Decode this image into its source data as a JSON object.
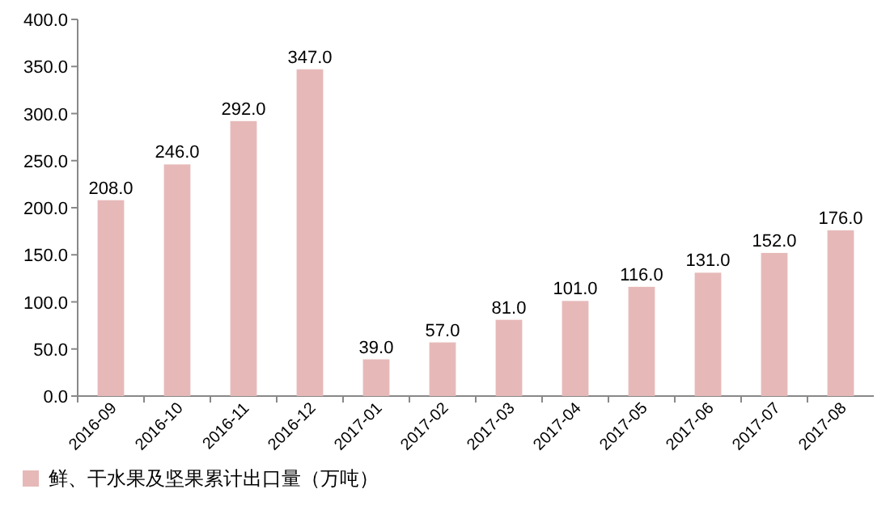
{
  "chart_data": {
    "type": "bar",
    "categories": [
      "2016-09",
      "2016-10",
      "2016-11",
      "2016-12",
      "2017-01",
      "2017-02",
      "2017-03",
      "2017-04",
      "2017-05",
      "2017-06",
      "2017-07",
      "2017-08"
    ],
    "series": [
      {
        "name": "鲜、干水果及坚果累计出口量（万吨）",
        "color": "#e6b9b8",
        "values": [
          208,
          246,
          292,
          347,
          39,
          57,
          81,
          101,
          116,
          131,
          152,
          176
        ],
        "value_labels": [
          "208.0",
          "246.0",
          "292.0",
          "347.0",
          "39.0",
          "57.0",
          "81.0",
          "101.0",
          "116.0",
          "131.0",
          "152.0",
          "176.0"
        ]
      }
    ],
    "ylim": [
      0,
      400
    ],
    "yticks": [
      {
        "value": 0,
        "label": "0.0"
      },
      {
        "value": 50,
        "label": "50.0"
      },
      {
        "value": 100,
        "label": "100.0"
      },
      {
        "value": 150,
        "label": "150.0"
      },
      {
        "value": 200,
        "label": "200.0"
      },
      {
        "value": 250,
        "label": "250.0"
      },
      {
        "value": 300,
        "label": "300.0"
      },
      {
        "value": 350,
        "label": "350.0"
      },
      {
        "value": 400,
        "label": "400.0"
      }
    ],
    "grid": false,
    "legend": "bottom"
  }
}
